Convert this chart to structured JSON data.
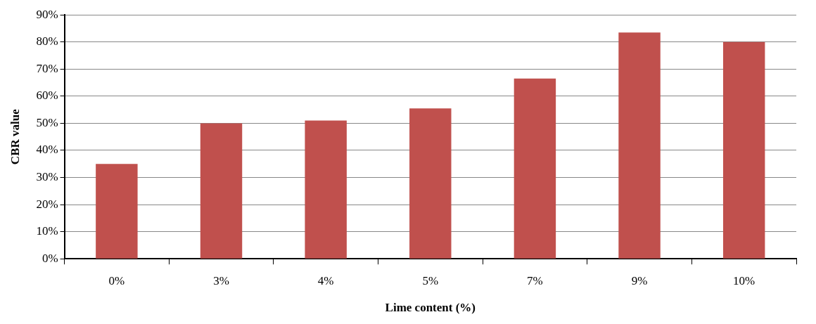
{
  "chart_data": {
    "type": "bar",
    "xlabel": "Lime content (%)",
    "ylabel": "CBR value",
    "categories": [
      "0%",
      "3%",
      "4%",
      "5%",
      "7%",
      "9%",
      "10%"
    ],
    "values": [
      35,
      50,
      51,
      55.5,
      66.5,
      83.5,
      80
    ],
    "color": "#c0504d",
    "ylim": [
      0,
      90
    ],
    "yticks": [
      {
        "value": 0,
        "label": "0%"
      },
      {
        "value": 10,
        "label": "10%"
      },
      {
        "value": 20,
        "label": "20%"
      },
      {
        "value": 30,
        "label": "30%"
      },
      {
        "value": 40,
        "label": "40%"
      },
      {
        "value": 50,
        "label": "50%"
      },
      {
        "value": 60,
        "label": "60%"
      },
      {
        "value": 70,
        "label": "70%"
      },
      {
        "value": 80,
        "label": "80%"
      },
      {
        "value": 90,
        "label": "90%"
      }
    ],
    "grid": "y"
  }
}
